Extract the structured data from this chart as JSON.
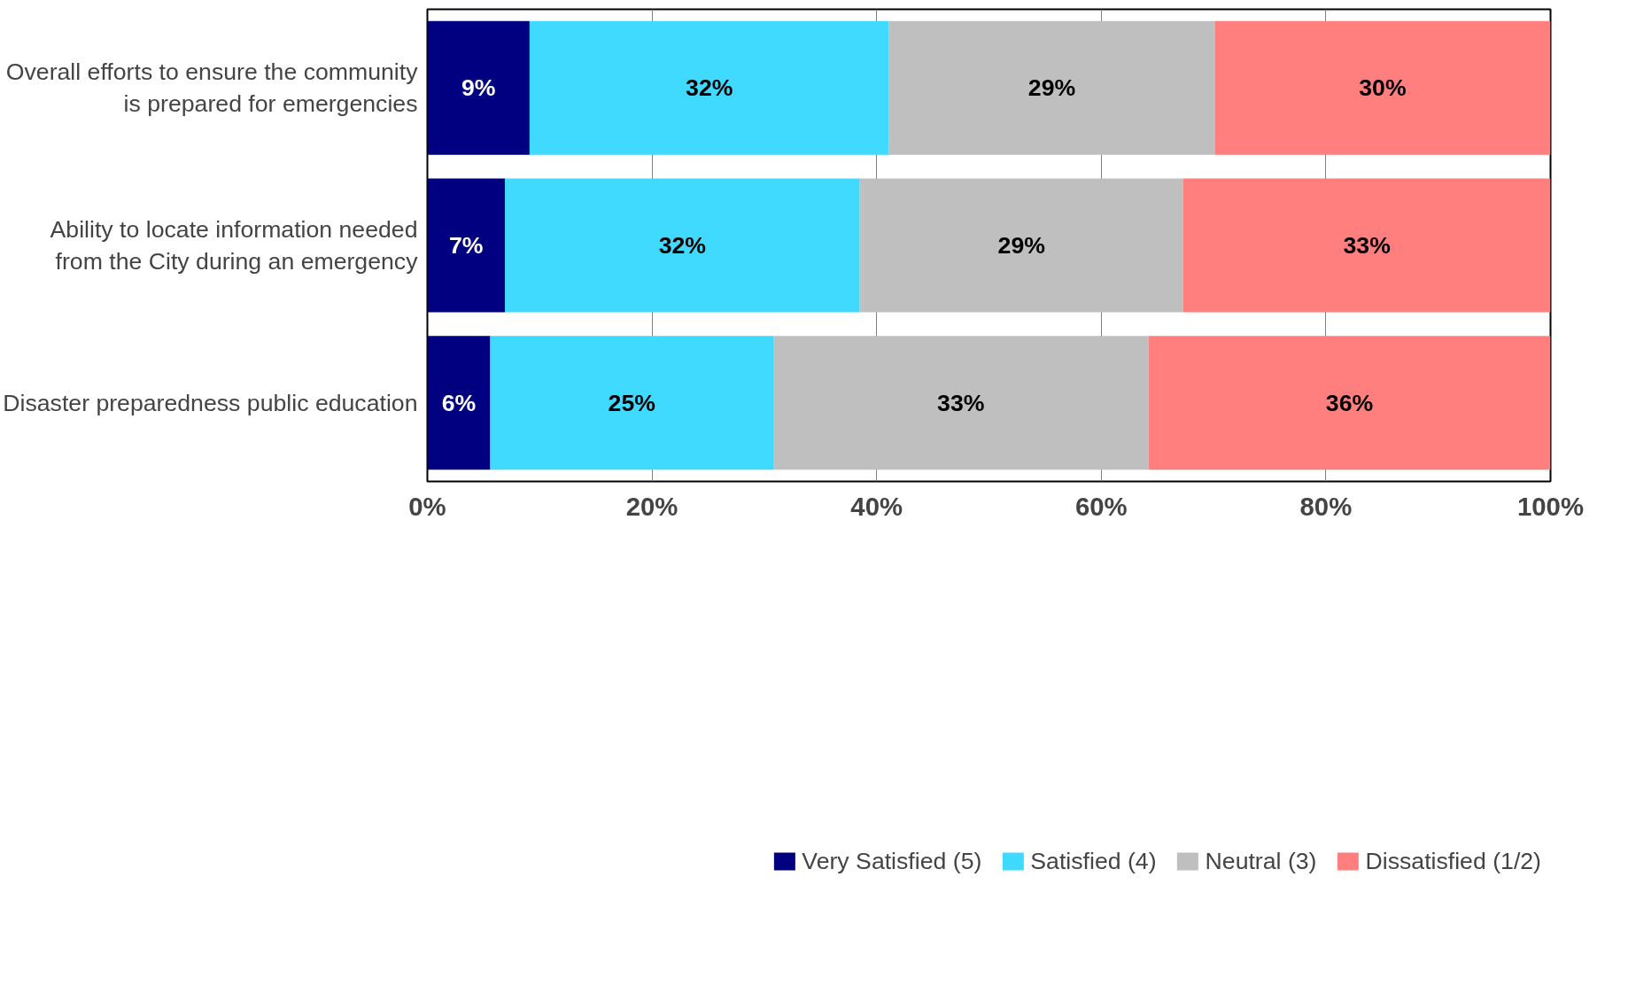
{
  "chart_data": {
    "type": "bar",
    "orientation": "horizontal",
    "stacked": true,
    "categories": [
      "Overall efforts to ensure the community is prepared for emergencies",
      "Ability to locate information needed from the City during an emergency",
      "Disaster preparedness public education"
    ],
    "series": [
      {
        "name": "Very Satisfied (5)",
        "color": "#000080",
        "values": [
          9.1,
          6.9,
          5.6
        ],
        "value_labels": [
          "9%",
          "7%",
          "6%"
        ]
      },
      {
        "name": "Satisfied (4)",
        "color": "#40d9ff",
        "values": [
          32.0,
          31.6,
          25.2
        ],
        "value_labels": [
          "32%",
          "32%",
          "25%"
        ]
      },
      {
        "name": "Neutral (3)",
        "color": "#bfbfbf",
        "values": [
          29.0,
          28.8,
          33.4
        ],
        "value_labels": [
          "29%",
          "29%",
          "33%"
        ]
      },
      {
        "name": "Dissatisfied (1/2)",
        "color": "#ff7f7f",
        "values": [
          29.9,
          32.7,
          35.8
        ],
        "value_labels": [
          "30%",
          "33%",
          "36%"
        ]
      }
    ],
    "xlim": [
      0,
      100
    ],
    "xticks": [
      {
        "value": 0,
        "label": "0%"
      },
      {
        "value": 20,
        "label": "20%"
      },
      {
        "value": 40,
        "label": "40%"
      },
      {
        "value": 60,
        "label": "60%"
      },
      {
        "value": 80,
        "label": "80%"
      },
      {
        "value": 100,
        "label": "100%"
      }
    ],
    "grid": "x",
    "legend": "bottom"
  }
}
